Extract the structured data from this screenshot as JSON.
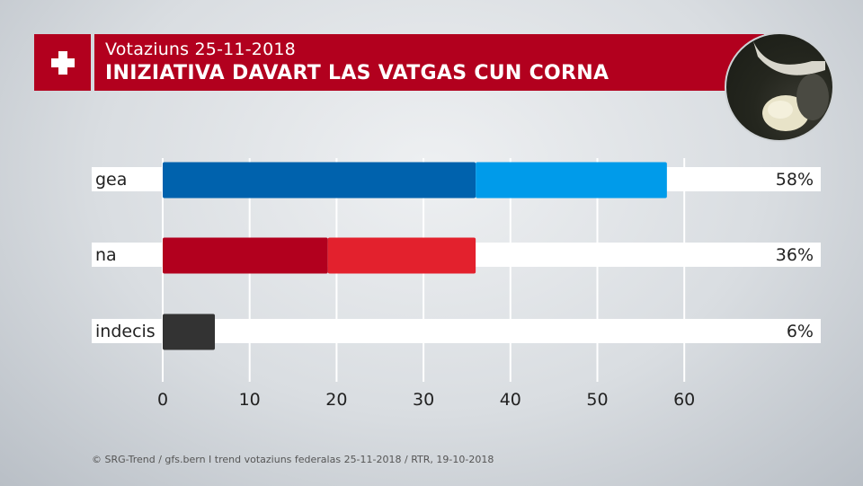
{
  "header": {
    "subtitle": "Votaziuns 25-11-2018",
    "title": "INIZIATIVA DAVART LAS VATGAS CUN CORNA"
  },
  "colors": {
    "header_red": "#b2001e",
    "yes_dark": "#0062ad",
    "yes_light": "#009bea",
    "no_dark": "#b2001e",
    "no_light": "#e3212d",
    "undecided": "#333333"
  },
  "chart_data": {
    "type": "bar",
    "orientation": "horizontal",
    "categories": [
      "gea",
      "na",
      "indecis"
    ],
    "values": [
      58,
      36,
      6
    ],
    "value_labels": [
      "58%",
      "36%",
      "6%"
    ],
    "segments": [
      [
        {
          "value": 36,
          "color": "yes_dark"
        },
        {
          "value": 22,
          "color": "yes_light"
        }
      ],
      [
        {
          "value": 19,
          "color": "no_dark"
        },
        {
          "value": 17,
          "color": "no_light"
        }
      ],
      [
        {
          "value": 6,
          "color": "undecided"
        }
      ]
    ],
    "xticks": [
      0,
      10,
      20,
      30,
      40,
      50,
      60
    ],
    "xlim": [
      0,
      60
    ],
    "grid": true
  },
  "footer": {
    "source": "© SRG-Trend / gfs.bern  I  trend votaziuns federalas 25-11-2018 / RTR, 19-10-2018"
  }
}
